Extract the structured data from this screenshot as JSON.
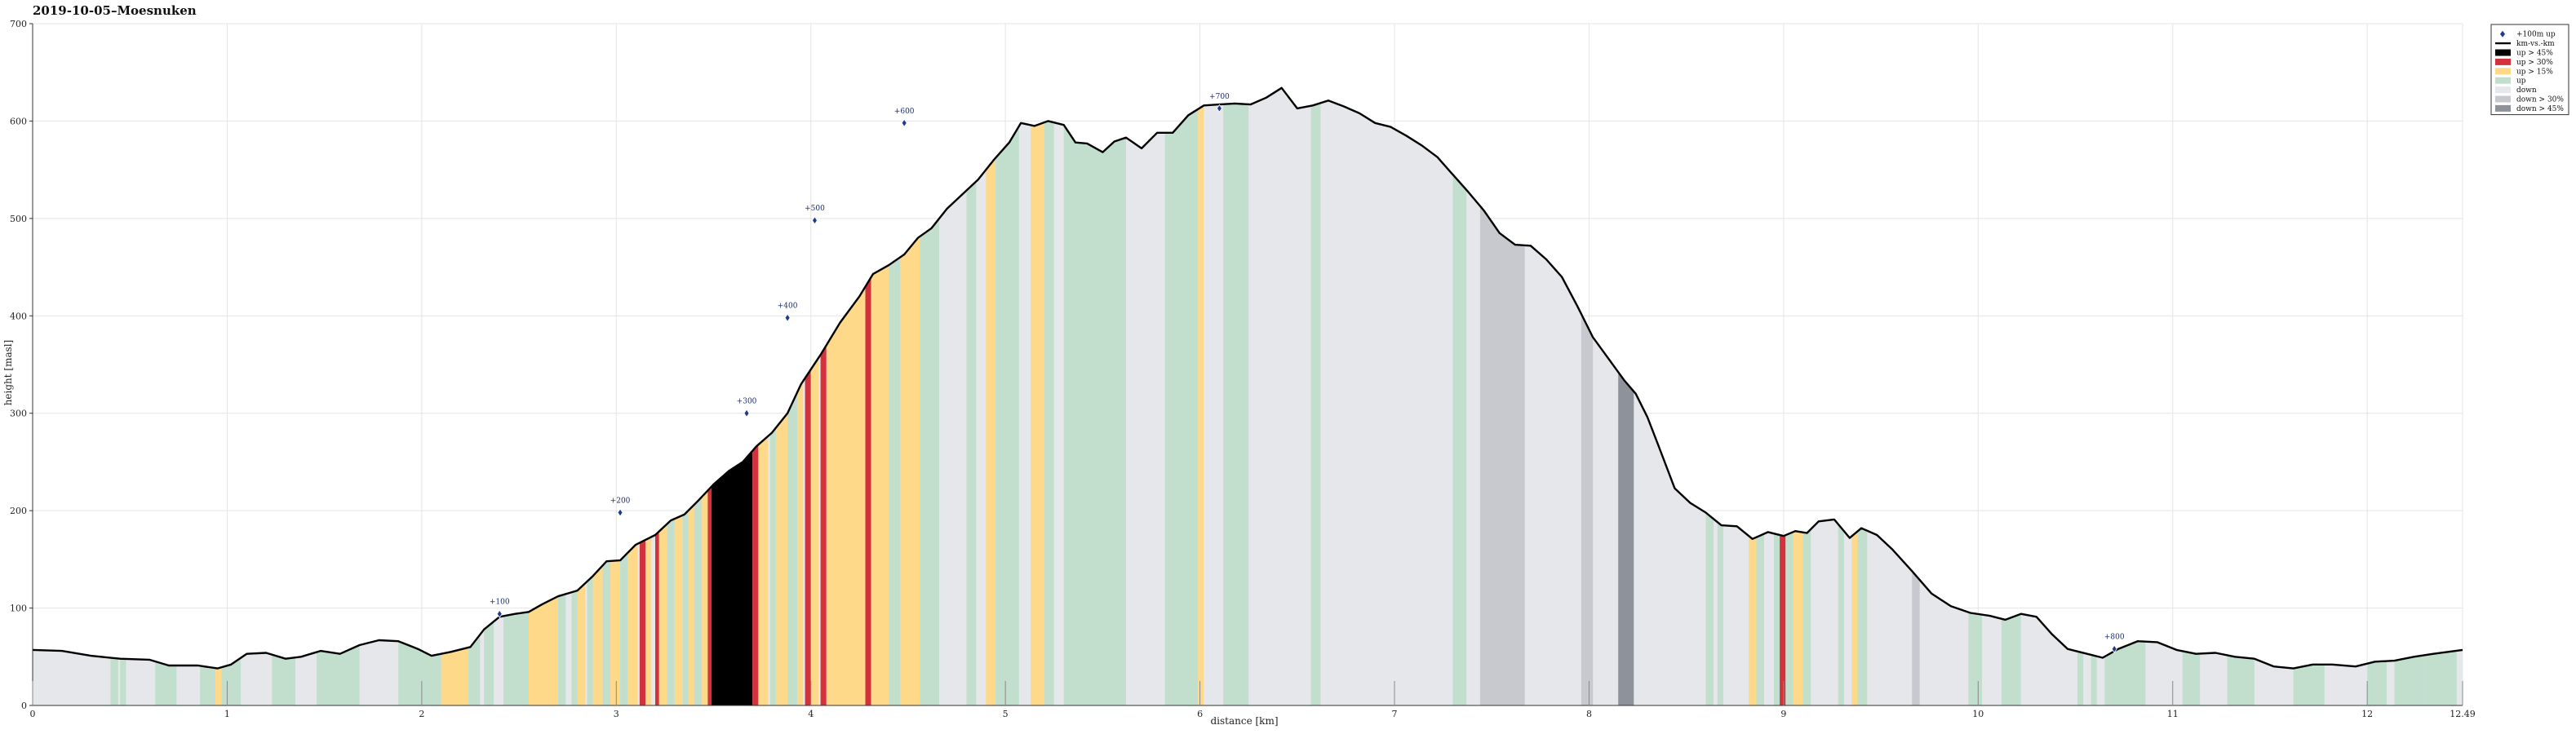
{
  "chart_data": {
    "type": "area",
    "title": "2019-10-05–Moesnuken",
    "xlabel": "distance [km]",
    "ylabel": "height [masl]",
    "xlim": [
      0,
      12.49
    ],
    "ylim": [
      0,
      700
    ],
    "x_ticks": [
      "0",
      "1",
      "2",
      "3",
      "4",
      "5",
      "6",
      "7",
      "8",
      "9",
      "10",
      "11",
      "12",
      "12.49"
    ],
    "x_tick_values": [
      0,
      1,
      2,
      3,
      4,
      5,
      6,
      7,
      8,
      9,
      10,
      11,
      12,
      12.49
    ],
    "y_ticks": [
      0,
      100,
      200,
      300,
      400,
      500,
      600,
      700
    ],
    "grid": true,
    "legend_position": "top-right",
    "legend": [
      {
        "key": "marker",
        "label": "+100m up",
        "color": "#1f3b8c"
      },
      {
        "key": "line",
        "label": "km-vs.-km",
        "color": "#000000"
      },
      {
        "key": "up45",
        "label": "up > 45%",
        "color": "#000000"
      },
      {
        "key": "up30",
        "label": "up > 30%",
        "color": "#d2323c"
      },
      {
        "key": "up15",
        "label": "up > 15%",
        "color": "#ffd98a"
      },
      {
        "key": "up",
        "label": "up",
        "color": "#c2dfcd"
      },
      {
        "key": "down",
        "label": "down",
        "color": "#e6e7ea"
      },
      {
        "key": "down30",
        "label": "down > 30%",
        "color": "#c7c9cf"
      },
      {
        "key": "down45",
        "label": "down > 45%",
        "color": "#8e929b"
      }
    ],
    "profile": [
      [
        0.0,
        57
      ],
      [
        0.15,
        56
      ],
      [
        0.3,
        51
      ],
      [
        0.45,
        48
      ],
      [
        0.6,
        47
      ],
      [
        0.7,
        41
      ],
      [
        0.85,
        41
      ],
      [
        0.95,
        38
      ],
      [
        1.02,
        42
      ],
      [
        1.1,
        53
      ],
      [
        1.2,
        54
      ],
      [
        1.3,
        48
      ],
      [
        1.38,
        50
      ],
      [
        1.48,
        56
      ],
      [
        1.58,
        53
      ],
      [
        1.68,
        62
      ],
      [
        1.78,
        67
      ],
      [
        1.88,
        66
      ],
      [
        1.98,
        58
      ],
      [
        2.05,
        51
      ],
      [
        2.15,
        55
      ],
      [
        2.25,
        60
      ],
      [
        2.32,
        78
      ],
      [
        2.4,
        91
      ],
      [
        2.48,
        94
      ],
      [
        2.55,
        96
      ],
      [
        2.62,
        104
      ],
      [
        2.7,
        112
      ],
      [
        2.8,
        118
      ],
      [
        2.88,
        133
      ],
      [
        2.95,
        148
      ],
      [
        3.02,
        149
      ],
      [
        3.1,
        165
      ],
      [
        3.2,
        175
      ],
      [
        3.28,
        190
      ],
      [
        3.35,
        196
      ],
      [
        3.42,
        210
      ],
      [
        3.5,
        227
      ],
      [
        3.58,
        241
      ],
      [
        3.65,
        250
      ],
      [
        3.72,
        266
      ],
      [
        3.8,
        280
      ],
      [
        3.88,
        300
      ],
      [
        3.95,
        330
      ],
      [
        4.05,
        360
      ],
      [
        4.15,
        393
      ],
      [
        4.25,
        420
      ],
      [
        4.32,
        443
      ],
      [
        4.4,
        452
      ],
      [
        4.48,
        463
      ],
      [
        4.55,
        480
      ],
      [
        4.62,
        490
      ],
      [
        4.7,
        510
      ],
      [
        4.78,
        525
      ],
      [
        4.86,
        540
      ],
      [
        4.94,
        560
      ],
      [
        5.02,
        578
      ],
      [
        5.08,
        598
      ],
      [
        5.15,
        595
      ],
      [
        5.22,
        600
      ],
      [
        5.3,
        596
      ],
      [
        5.36,
        578
      ],
      [
        5.42,
        577
      ],
      [
        5.5,
        568
      ],
      [
        5.56,
        579
      ],
      [
        5.62,
        583
      ],
      [
        5.7,
        572
      ],
      [
        5.78,
        588
      ],
      [
        5.86,
        588
      ],
      [
        5.94,
        606
      ],
      [
        6.02,
        616
      ],
      [
        6.1,
        617
      ],
      [
        6.18,
        618
      ],
      [
        6.26,
        617
      ],
      [
        6.34,
        624
      ],
      [
        6.42,
        634
      ],
      [
        6.5,
        613
      ],
      [
        6.58,
        616
      ],
      [
        6.66,
        621
      ],
      [
        6.74,
        615
      ],
      [
        6.82,
        608
      ],
      [
        6.9,
        598
      ],
      [
        6.98,
        594
      ],
      [
        7.06,
        585
      ],
      [
        7.14,
        575
      ],
      [
        7.22,
        563
      ],
      [
        7.3,
        545
      ],
      [
        7.38,
        527
      ],
      [
        7.46,
        508
      ],
      [
        7.54,
        485
      ],
      [
        7.62,
        473
      ],
      [
        7.7,
        472
      ],
      [
        7.78,
        458
      ],
      [
        7.86,
        440
      ],
      [
        7.94,
        410
      ],
      [
        8.02,
        378
      ],
      [
        8.1,
        356
      ],
      [
        8.18,
        334
      ],
      [
        8.24,
        320
      ],
      [
        8.3,
        296
      ],
      [
        8.36,
        265
      ],
      [
        8.44,
        223
      ],
      [
        8.52,
        208
      ],
      [
        8.6,
        198
      ],
      [
        8.68,
        185
      ],
      [
        8.76,
        184
      ],
      [
        8.84,
        171
      ],
      [
        8.92,
        178
      ],
      [
        9.0,
        174
      ],
      [
        9.06,
        179
      ],
      [
        9.12,
        177
      ],
      [
        9.18,
        189
      ],
      [
        9.26,
        191
      ],
      [
        9.34,
        172
      ],
      [
        9.4,
        182
      ],
      [
        9.48,
        175
      ],
      [
        9.56,
        160
      ],
      [
        9.66,
        138
      ],
      [
        9.76,
        115
      ],
      [
        9.86,
        102
      ],
      [
        9.96,
        95
      ],
      [
        10.06,
        92
      ],
      [
        10.14,
        88
      ],
      [
        10.22,
        94
      ],
      [
        10.3,
        91
      ],
      [
        10.38,
        73
      ],
      [
        10.46,
        58
      ],
      [
        10.56,
        53
      ],
      [
        10.64,
        49
      ],
      [
        10.72,
        58
      ],
      [
        10.82,
        66
      ],
      [
        10.92,
        65
      ],
      [
        11.02,
        57
      ],
      [
        11.12,
        53
      ],
      [
        11.22,
        54
      ],
      [
        11.32,
        50
      ],
      [
        11.42,
        48
      ],
      [
        11.52,
        40
      ],
      [
        11.62,
        38
      ],
      [
        11.72,
        42
      ],
      [
        11.82,
        42
      ],
      [
        11.94,
        40
      ],
      [
        12.04,
        45
      ],
      [
        12.14,
        46
      ],
      [
        12.24,
        50
      ],
      [
        12.34,
        53
      ],
      [
        12.49,
        57
      ]
    ],
    "markers": [
      {
        "label": "+100",
        "x": 2.4,
        "y": 94
      },
      {
        "label": "+200",
        "x": 3.02,
        "y": 198
      },
      {
        "label": "+300",
        "x": 3.67,
        "y": 300
      },
      {
        "label": "+400",
        "x": 3.88,
        "y": 398
      },
      {
        "label": "+500",
        "x": 4.02,
        "y": 498
      },
      {
        "label": "+600",
        "x": 4.48,
        "y": 598
      },
      {
        "label": "+700",
        "x": 6.1,
        "y": 613
      },
      {
        "label": "+800",
        "x": 10.7,
        "y": 58
      }
    ],
    "segments": [
      {
        "from": 0.4,
        "to": 0.44,
        "class": "up"
      },
      {
        "from": 0.45,
        "to": 0.48,
        "class": "up"
      },
      {
        "from": 0.63,
        "to": 0.74,
        "class": "up"
      },
      {
        "from": 0.86,
        "to": 0.94,
        "class": "up"
      },
      {
        "from": 0.94,
        "to": 0.97,
        "class": "up15"
      },
      {
        "from": 0.97,
        "to": 1.07,
        "class": "up"
      },
      {
        "from": 1.23,
        "to": 1.35,
        "class": "up"
      },
      {
        "from": 1.46,
        "to": 1.68,
        "class": "up"
      },
      {
        "from": 1.88,
        "to": 2.1,
        "class": "up"
      },
      {
        "from": 2.1,
        "to": 2.24,
        "class": "up15"
      },
      {
        "from": 2.24,
        "to": 2.3,
        "class": "up"
      },
      {
        "from": 2.32,
        "to": 2.37,
        "class": "up"
      },
      {
        "from": 2.42,
        "to": 2.55,
        "class": "up"
      },
      {
        "from": 2.55,
        "to": 2.7,
        "class": "up15"
      },
      {
        "from": 2.7,
        "to": 2.74,
        "class": "up"
      },
      {
        "from": 2.77,
        "to": 2.8,
        "class": "up"
      },
      {
        "from": 2.8,
        "to": 2.84,
        "class": "up15"
      },
      {
        "from": 2.85,
        "to": 2.88,
        "class": "up"
      },
      {
        "from": 2.88,
        "to": 2.93,
        "class": "up15"
      },
      {
        "from": 2.93,
        "to": 2.97,
        "class": "up"
      },
      {
        "from": 2.97,
        "to": 3.02,
        "class": "up15"
      },
      {
        "from": 3.02,
        "to": 3.06,
        "class": "up"
      },
      {
        "from": 3.06,
        "to": 3.11,
        "class": "up15"
      },
      {
        "from": 3.12,
        "to": 3.15,
        "class": "up30"
      },
      {
        "from": 3.15,
        "to": 3.18,
        "class": "up15"
      },
      {
        "from": 3.2,
        "to": 3.22,
        "class": "up30"
      },
      {
        "from": 3.22,
        "to": 3.26,
        "class": "up15"
      },
      {
        "from": 3.26,
        "to": 3.3,
        "class": "up"
      },
      {
        "from": 3.3,
        "to": 3.34,
        "class": "up15"
      },
      {
        "from": 3.34,
        "to": 3.37,
        "class": "up"
      },
      {
        "from": 3.37,
        "to": 3.4,
        "class": "up15"
      },
      {
        "from": 3.4,
        "to": 3.44,
        "class": "up"
      },
      {
        "from": 3.44,
        "to": 3.47,
        "class": "up15"
      },
      {
        "from": 3.47,
        "to": 3.49,
        "class": "up30"
      },
      {
        "from": 3.49,
        "to": 3.7,
        "class": "up45"
      },
      {
        "from": 3.7,
        "to": 3.73,
        "class": "up30"
      },
      {
        "from": 3.73,
        "to": 3.78,
        "class": "up15"
      },
      {
        "from": 3.79,
        "to": 3.82,
        "class": "up"
      },
      {
        "from": 3.82,
        "to": 3.88,
        "class": "up15"
      },
      {
        "from": 3.88,
        "to": 3.93,
        "class": "up"
      },
      {
        "from": 3.93,
        "to": 3.96,
        "class": "up15"
      },
      {
        "from": 3.97,
        "to": 4.0,
        "class": "up30"
      },
      {
        "from": 4.0,
        "to": 4.04,
        "class": "up15"
      },
      {
        "from": 4.05,
        "to": 4.08,
        "class": "up30"
      },
      {
        "from": 4.08,
        "to": 4.28,
        "class": "up15"
      },
      {
        "from": 4.28,
        "to": 4.31,
        "class": "up30"
      },
      {
        "from": 4.31,
        "to": 4.4,
        "class": "up15"
      },
      {
        "from": 4.4,
        "to": 4.46,
        "class": "up"
      },
      {
        "from": 4.46,
        "to": 4.56,
        "class": "up15"
      },
      {
        "from": 4.56,
        "to": 4.66,
        "class": "up"
      },
      {
        "from": 4.8,
        "to": 4.85,
        "class": "up"
      },
      {
        "from": 4.9,
        "to": 4.95,
        "class": "up15"
      },
      {
        "from": 4.95,
        "to": 5.07,
        "class": "up"
      },
      {
        "from": 5.13,
        "to": 5.2,
        "class": "up15"
      },
      {
        "from": 5.2,
        "to": 5.25,
        "class": "up"
      },
      {
        "from": 5.3,
        "to": 5.62,
        "class": "up"
      },
      {
        "from": 5.82,
        "to": 5.99,
        "class": "up"
      },
      {
        "from": 5.99,
        "to": 6.02,
        "class": "up15"
      },
      {
        "from": 6.12,
        "to": 6.25,
        "class": "up"
      },
      {
        "from": 6.57,
        "to": 6.62,
        "class": "up"
      },
      {
        "from": 7.3,
        "to": 7.37,
        "class": "up"
      },
      {
        "from": 7.44,
        "to": 7.67,
        "class": "down30"
      },
      {
        "from": 7.96,
        "to": 8.02,
        "class": "down30"
      },
      {
        "from": 8.15,
        "to": 8.23,
        "class": "down45"
      },
      {
        "from": 8.6,
        "to": 8.64,
        "class": "up"
      },
      {
        "from": 8.66,
        "to": 8.69,
        "class": "up"
      },
      {
        "from": 8.82,
        "to": 8.86,
        "class": "up15"
      },
      {
        "from": 8.86,
        "to": 8.9,
        "class": "up"
      },
      {
        "from": 8.95,
        "to": 8.98,
        "class": "up"
      },
      {
        "from": 8.98,
        "to": 9.01,
        "class": "up30"
      },
      {
        "from": 9.01,
        "to": 9.05,
        "class": "up"
      },
      {
        "from": 9.05,
        "to": 9.1,
        "class": "up15"
      },
      {
        "from": 9.1,
        "to": 9.14,
        "class": "up"
      },
      {
        "from": 9.28,
        "to": 9.31,
        "class": "up"
      },
      {
        "from": 9.35,
        "to": 9.38,
        "class": "up15"
      },
      {
        "from": 9.38,
        "to": 9.43,
        "class": "up"
      },
      {
        "from": 9.66,
        "to": 9.7,
        "class": "down30"
      },
      {
        "from": 9.95,
        "to": 10.02,
        "class": "up"
      },
      {
        "from": 10.12,
        "to": 10.22,
        "class": "up"
      },
      {
        "from": 10.51,
        "to": 10.54,
        "class": "up"
      },
      {
        "from": 10.58,
        "to": 10.61,
        "class": "up"
      },
      {
        "from": 10.65,
        "to": 10.86,
        "class": "up"
      },
      {
        "from": 11.05,
        "to": 11.14,
        "class": "up"
      },
      {
        "from": 11.28,
        "to": 11.42,
        "class": "up"
      },
      {
        "from": 11.62,
        "to": 11.78,
        "class": "up"
      },
      {
        "from": 12.0,
        "to": 12.1,
        "class": "up"
      },
      {
        "from": 12.14,
        "to": 12.3,
        "class": "up"
      },
      {
        "from": 12.3,
        "to": 12.46,
        "class": "up"
      }
    ]
  }
}
